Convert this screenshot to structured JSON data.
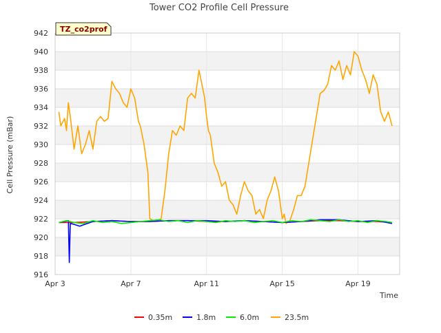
{
  "chart_data": {
    "type": "line",
    "title": "Tower CO2 Profile Cell Pressure",
    "badge": "TZ_co2prof",
    "xlabel": "Time",
    "ylabel": "Cell Pressure (mBar)",
    "xlim": [
      3.0,
      21.2
    ],
    "ylim": [
      916,
      942
    ],
    "x_ticks": [
      3,
      7,
      11,
      15,
      19
    ],
    "x_tick_labels": [
      "Apr 3",
      "Apr 7",
      "Apr 11",
      "Apr 15",
      "Apr 19"
    ],
    "y_ticks": [
      916,
      918,
      920,
      922,
      924,
      926,
      928,
      930,
      932,
      934,
      936,
      938,
      940,
      942
    ],
    "grid_bands": true,
    "legend_position": "bottom-center",
    "series": [
      {
        "name": "0.35m",
        "color": "#ff0000",
        "x": [
          3.2,
          4.0,
          5.0,
          6.0,
          7.0,
          8.0,
          9.0,
          10.0,
          11.0,
          12.0,
          13.0,
          14.0,
          15.0,
          16.0,
          17.0,
          18.0,
          19.0,
          20.0,
          20.8
        ],
        "values": [
          921.6,
          921.6,
          921.7,
          921.8,
          921.7,
          921.7,
          921.8,
          921.8,
          921.7,
          921.7,
          921.8,
          921.7,
          921.6,
          921.7,
          921.8,
          921.8,
          921.7,
          921.7,
          921.6
        ]
      },
      {
        "name": "1.8m",
        "color": "#0000ff",
        "x": [
          3.2,
          3.5,
          3.7,
          3.75,
          3.8,
          4.0,
          4.3,
          5.0,
          6.0,
          7.0,
          8.0,
          9.0,
          10.0,
          11.0,
          12.0,
          13.0,
          14.0,
          15.0,
          16.0,
          17.0,
          18.0,
          19.0,
          20.0,
          20.8
        ],
        "values": [
          921.6,
          921.7,
          921.8,
          917.3,
          921.5,
          921.4,
          921.2,
          921.7,
          921.8,
          921.7,
          921.7,
          921.8,
          921.8,
          921.8,
          921.7,
          921.8,
          921.7,
          921.6,
          921.7,
          921.9,
          921.9,
          921.7,
          921.8,
          921.5
        ]
      },
      {
        "name": "6.0m",
        "color": "#00ee00",
        "x": [
          3.2,
          3.6,
          4.0,
          4.5,
          5.0,
          5.5,
          6.0,
          6.5,
          7.0,
          7.5,
          8.0,
          8.5,
          9.0,
          9.5,
          10.0,
          10.5,
          11.0,
          11.5,
          12.0,
          12.5,
          13.0,
          13.5,
          14.0,
          14.5,
          15.0,
          15.5,
          16.0,
          16.5,
          17.0,
          17.5,
          18.0,
          18.5,
          19.0,
          19.5,
          20.0,
          20.5,
          20.8
        ],
        "values": [
          921.6,
          921.8,
          921.6,
          921.5,
          921.8,
          921.6,
          921.7,
          921.5,
          921.6,
          921.7,
          921.8,
          921.9,
          921.7,
          921.8,
          921.6,
          921.8,
          921.7,
          921.6,
          921.8,
          921.7,
          921.8,
          921.6,
          921.7,
          921.8,
          921.6,
          921.8,
          921.7,
          921.9,
          921.8,
          921.7,
          921.9,
          921.7,
          921.8,
          921.6,
          921.8,
          921.7,
          921.6
        ]
      },
      {
        "name": "23.5m",
        "color": "#ffa500",
        "x": [
          3.2,
          3.3,
          3.5,
          3.6,
          3.7,
          3.8,
          4.0,
          4.2,
          4.4,
          4.6,
          4.8,
          5.0,
          5.2,
          5.4,
          5.6,
          5.8,
          6.0,
          6.2,
          6.4,
          6.6,
          6.8,
          7.0,
          7.2,
          7.4,
          7.5,
          7.7,
          7.9,
          8.0,
          8.2,
          8.4,
          8.6,
          8.8,
          9.0,
          9.2,
          9.4,
          9.6,
          9.8,
          10.0,
          10.2,
          10.4,
          10.6,
          10.8,
          10.9,
          11.0,
          11.1,
          11.2,
          11.4,
          11.6,
          11.8,
          12.0,
          12.2,
          12.4,
          12.6,
          12.8,
          13.0,
          13.2,
          13.4,
          13.6,
          13.8,
          14.0,
          14.2,
          14.4,
          14.6,
          14.8,
          15.0,
          15.1,
          15.2,
          15.4,
          15.6,
          15.8,
          16.0,
          16.2,
          16.4,
          16.6,
          16.8,
          17.0,
          17.2,
          17.4,
          17.6,
          17.8,
          18.0,
          18.2,
          18.4,
          18.6,
          18.8,
          19.0,
          19.2,
          19.4,
          19.6,
          19.8,
          20.0,
          20.2,
          20.4,
          20.6,
          20.8
        ],
        "values": [
          933.5,
          932.0,
          932.8,
          931.5,
          934.5,
          933.0,
          929.5,
          932.0,
          929.0,
          930.0,
          931.5,
          929.5,
          932.5,
          933.0,
          932.5,
          932.8,
          936.8,
          936.0,
          935.5,
          934.5,
          934.0,
          936.0,
          935.0,
          932.5,
          932.0,
          930.0,
          927.0,
          922.0,
          921.8,
          921.8,
          922.0,
          925.0,
          929.0,
          931.5,
          931.0,
          932.0,
          931.5,
          935.0,
          935.5,
          935.0,
          938.0,
          936.0,
          935.0,
          933.0,
          931.5,
          931.0,
          928.0,
          927.0,
          925.5,
          926.0,
          924.0,
          923.5,
          922.5,
          924.5,
          926.0,
          925.0,
          924.5,
          922.5,
          923.0,
          922.0,
          924.0,
          925.0,
          926.5,
          925.0,
          922.0,
          922.5,
          921.5,
          921.8,
          923.0,
          924.5,
          924.5,
          925.5,
          928.0,
          930.5,
          933.0,
          935.5,
          935.8,
          936.5,
          938.5,
          938.0,
          939.0,
          937.0,
          938.5,
          937.5,
          940.0,
          939.5,
          938.0,
          937.0,
          935.5,
          937.5,
          936.5,
          933.5,
          932.5,
          933.5,
          932.0
        ]
      }
    ]
  }
}
